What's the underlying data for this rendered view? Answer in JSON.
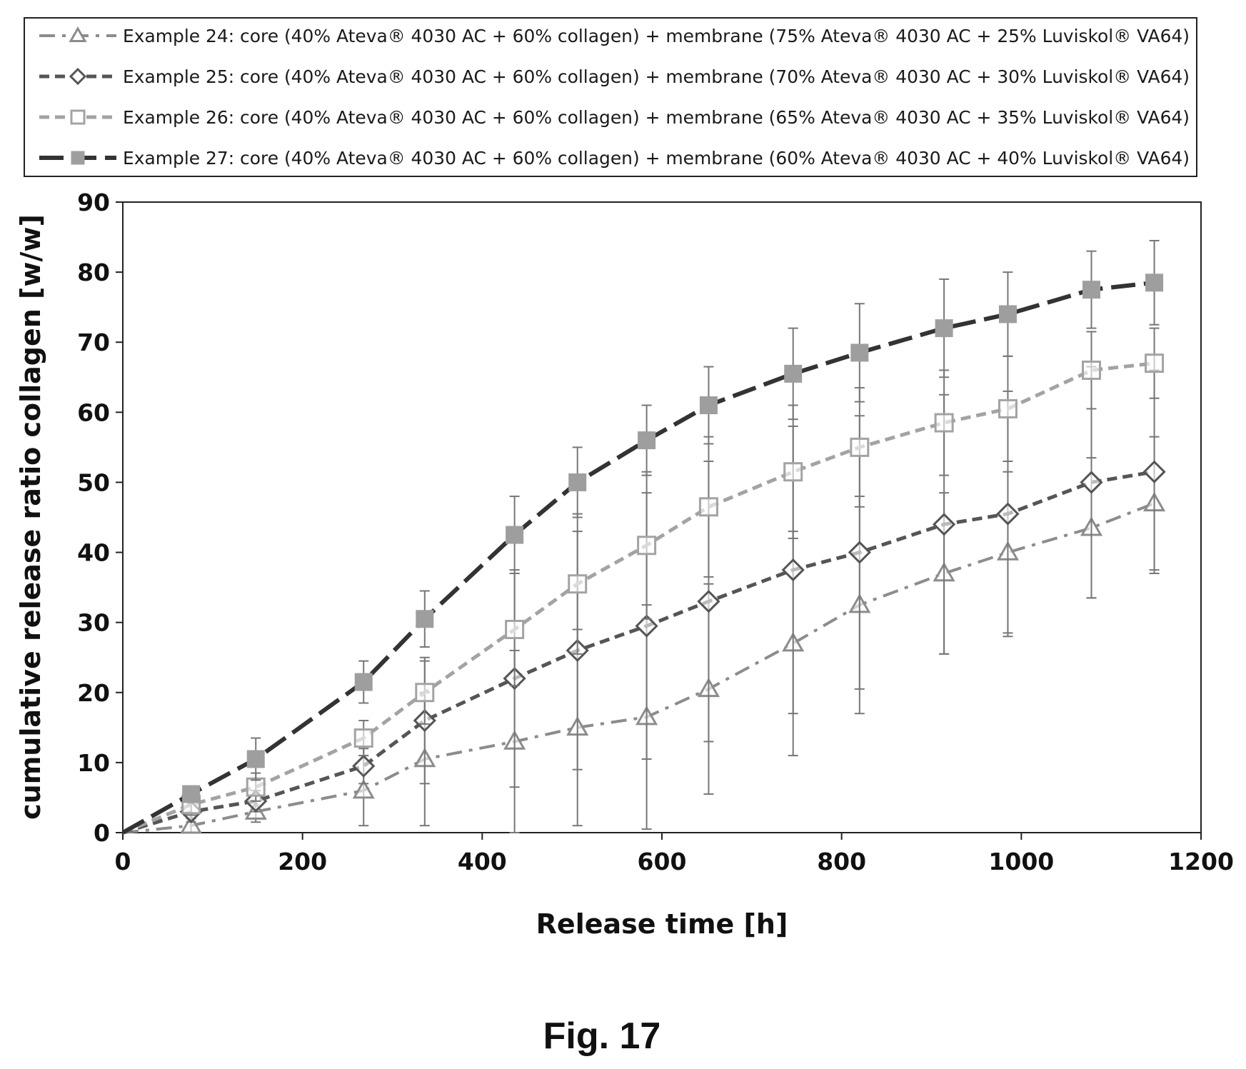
{
  "figure": {
    "caption": "Fig. 17"
  },
  "chart_data": {
    "type": "line",
    "title": "",
    "xlabel": "Release time [h]",
    "ylabel": "cumulative release ratio collagen [w/w]",
    "xlim": [
      0,
      1200
    ],
    "ylim": [
      0,
      90
    ],
    "xticks": [
      0,
      200,
      400,
      600,
      800,
      1000,
      1200
    ],
    "yticks": [
      0,
      10,
      20,
      30,
      40,
      50,
      60,
      70,
      80,
      90
    ],
    "grid": false,
    "legend_position": "top",
    "series": [
      {
        "name": "Example 24: core (40% Ateva® 4030 AC + 60% collagen) + membrane (75% Ateva® 4030 AC + 25% Luviskol® VA64)",
        "marker": "triangle-open",
        "line": "dash-dot",
        "color": "#8c8c8c",
        "x": [
          0,
          76,
          148,
          268,
          336,
          436,
          506,
          583,
          652,
          746,
          820,
          914,
          985,
          1078,
          1148
        ],
        "y": [
          0,
          1.0,
          3.0,
          6.0,
          10.5,
          13.0,
          15.0,
          16.5,
          20.5,
          27.0,
          32.5,
          37.0,
          40.0,
          43.5,
          47.0
        ],
        "error": [
          0,
          1.0,
          1.5,
          5.0,
          9.5,
          13.0,
          14.0,
          16.0,
          15.0,
          16.0,
          15.5,
          11.5,
          11.5,
          10.0,
          9.5
        ]
      },
      {
        "name": "Example 25: core (40% Ateva® 4030 AC + 60% collagen) + membrane (70% Ateva® 4030 AC + 30% Luviskol® VA64)",
        "marker": "diamond-open",
        "line": "dashed",
        "color": "#555555",
        "x": [
          0,
          76,
          148,
          268,
          336,
          436,
          506,
          583,
          652,
          746,
          820,
          914,
          985,
          1078,
          1148
        ],
        "y": [
          0,
          3.0,
          4.5,
          9.5,
          16.0,
          22.0,
          26.0,
          29.5,
          33.0,
          37.5,
          40.0,
          44.0,
          45.5,
          50.0,
          51.5
        ],
        "error": [
          0,
          1.5,
          1.5,
          2.5,
          9.0,
          15.5,
          17.0,
          19.0,
          20.0,
          20.5,
          19.5,
          18.5,
          17.5,
          16.5,
          14.5
        ]
      },
      {
        "name": "Example 26: core (40% Ateva® 4030 AC + 60% collagen) + membrane (65% Ateva® 4030 AC + 35% Luviskol® VA64)",
        "marker": "square-open",
        "line": "dashed",
        "color": "#a3a3a3",
        "x": [
          0,
          76,
          148,
          268,
          336,
          436,
          506,
          583,
          652,
          746,
          820,
          914,
          985,
          1078,
          1148
        ],
        "y": [
          0,
          4.0,
          6.5,
          13.5,
          20.0,
          29.0,
          35.5,
          41.0,
          46.5,
          51.5,
          55.0,
          58.5,
          60.5,
          66.0,
          67.0
        ],
        "error": [
          0,
          1.5,
          2.0,
          2.5,
          4.5,
          8.0,
          10.0,
          10.5,
          10.0,
          9.5,
          8.5,
          7.5,
          7.5,
          5.5,
          5.0
        ]
      },
      {
        "name": "Example 27: core (40% Ateva® 4030 AC + 60% collagen) + membrane (60% Ateva® 4030 AC + 40% Luviskol® VA64)",
        "marker": "square-filled",
        "line": "long-dash",
        "color": "#333333",
        "marker_color": "#9e9e9e",
        "x": [
          0,
          76,
          148,
          268,
          336,
          436,
          506,
          583,
          652,
          746,
          820,
          914,
          985,
          1078,
          1148
        ],
        "y": [
          0,
          5.5,
          10.5,
          21.5,
          30.5,
          42.5,
          50.0,
          56.0,
          61.0,
          65.5,
          68.5,
          72.0,
          74.0,
          77.5,
          78.5
        ],
        "error": [
          0,
          1.0,
          3.0,
          3.0,
          4.0,
          5.5,
          5.0,
          5.0,
          5.5,
          6.5,
          7.0,
          7.0,
          6.0,
          5.5,
          6.0
        ]
      }
    ]
  }
}
